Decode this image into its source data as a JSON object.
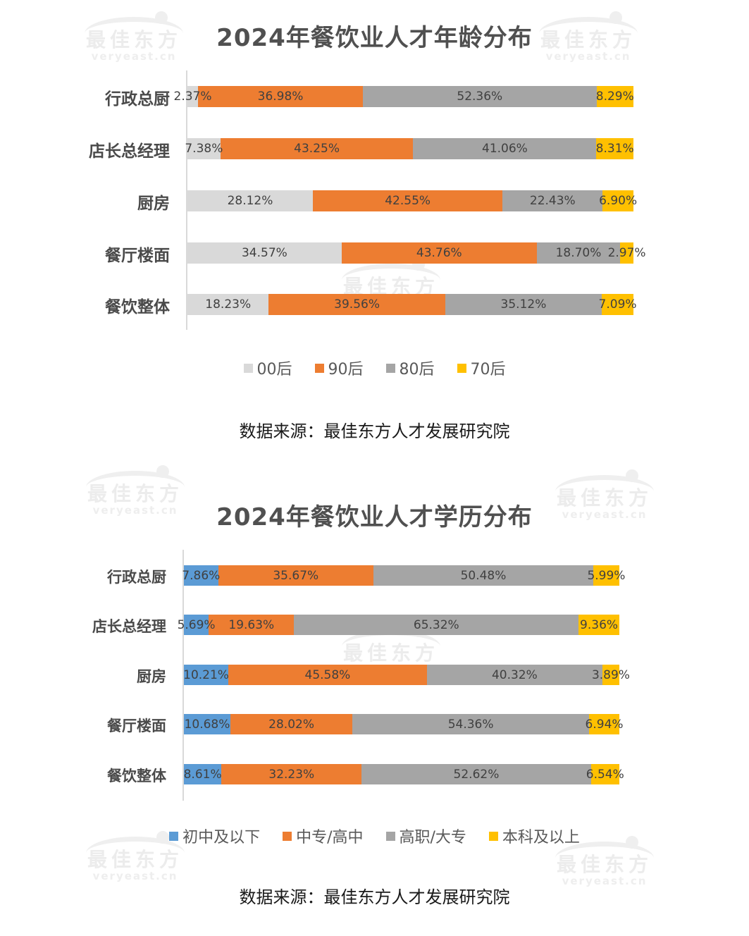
{
  "watermark": {
    "cn": "最佳东方",
    "en": "veryeast.cn"
  },
  "chart_data": [
    {
      "type": "bar",
      "orientation": "horizontal",
      "stacked": "100%",
      "title": "2024年餐饮业人才年龄分布",
      "categories": [
        "行政总厨",
        "店长总经理",
        "厨房",
        "餐厅楼面",
        "餐饮整体"
      ],
      "series": [
        {
          "name": "00后",
          "color": "#d9d9d9",
          "values": [
            2.37,
            7.38,
            28.12,
            34.57,
            18.23
          ],
          "labels": [
            "2.37%",
            "7.38%",
            "28.12%",
            "34.57%",
            "18.23%"
          ]
        },
        {
          "name": "90后",
          "color": "#ed7d31",
          "values": [
            36.98,
            43.25,
            42.55,
            43.76,
            39.56
          ],
          "labels": [
            "36.98%",
            "43.25%",
            "42.55%",
            "43.76%",
            "39.56%"
          ]
        },
        {
          "name": "80后",
          "color": "#a5a5a5",
          "values": [
            52.36,
            41.06,
            22.43,
            18.7,
            35.12
          ],
          "labels": [
            "52.36%",
            "41.06%",
            "22.43%",
            "18.70%",
            "35.12%"
          ]
        },
        {
          "name": "70后",
          "color": "#ffc000",
          "values": [
            8.29,
            8.31,
            6.9,
            2.97,
            7.09
          ],
          "labels": [
            "8.29%",
            "8.31%",
            "6.90%",
            "2.97%",
            "7.09%"
          ]
        }
      ],
      "xlabel": "",
      "ylabel": "",
      "xlim": [
        0,
        100
      ],
      "grid": false,
      "legend_position": "bottom",
      "source": "数据来源：最佳东方人才发展研究院"
    },
    {
      "type": "bar",
      "orientation": "horizontal",
      "stacked": "100%",
      "title": "2024年餐饮业人才学历分布",
      "categories": [
        "行政总厨",
        "店长总经理",
        "厨房",
        "餐厅楼面",
        "餐饮整体"
      ],
      "series": [
        {
          "name": "初中及以下",
          "color": "#5b9bd5",
          "values": [
            7.86,
            5.69,
            10.21,
            10.68,
            8.61
          ],
          "labels": [
            "7.86%",
            "5.69%",
            "10.21%",
            "10.68%",
            "8.61%"
          ]
        },
        {
          "name": "中专/高中",
          "color": "#ed7d31",
          "values": [
            35.67,
            19.63,
            45.58,
            28.02,
            32.23
          ],
          "labels": [
            "35.67%",
            "19.63%",
            "45.58%",
            "28.02%",
            "32.23%"
          ]
        },
        {
          "name": "高职/大专",
          "color": "#a5a5a5",
          "values": [
            50.48,
            65.32,
            40.32,
            54.36,
            52.62
          ],
          "labels": [
            "50.48%",
            "65.32%",
            "40.32%",
            "54.36%",
            "52.62%"
          ]
        },
        {
          "name": "本科及以上",
          "color": "#ffc000",
          "values": [
            5.99,
            9.36,
            3.89,
            6.94,
            6.54
          ],
          "labels": [
            "5.99%",
            "9.36%",
            "3.89%",
            "6.94%",
            "6.54%"
          ]
        }
      ],
      "xlabel": "",
      "ylabel": "",
      "xlim": [
        0,
        100
      ],
      "grid": false,
      "legend_position": "bottom",
      "source": "数据来源：最佳东方人才发展研究院"
    }
  ]
}
